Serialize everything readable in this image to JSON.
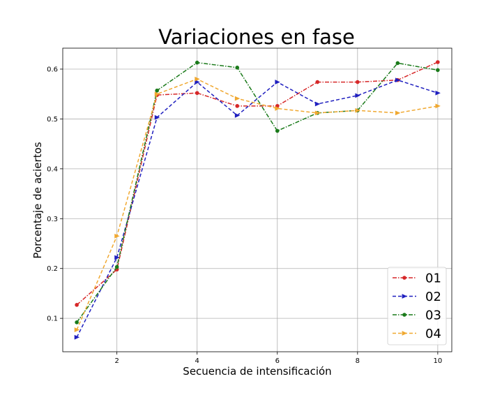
{
  "chart_data": {
    "type": "line",
    "title": "Variaciones en fase",
    "xlabel": "Secuencia de intensificación",
    "ylabel": "Porcentaje de aciertos",
    "xlim": [
      0.65,
      10.35
    ],
    "ylim": [
      0.033,
      0.642
    ],
    "xticks": [
      2,
      4,
      6,
      8,
      10
    ],
    "yticks": [
      0.1,
      0.2,
      0.3,
      0.4,
      0.5,
      0.6
    ],
    "grid": true,
    "legend_position": "lower-right",
    "x": [
      1,
      2,
      3,
      4,
      5,
      6,
      7,
      8,
      9,
      10
    ],
    "series": [
      {
        "name": "01",
        "color": "#d62728",
        "dash": "6,2,1.5,2",
        "marker": "circle",
        "values": [
          0.127,
          0.198,
          0.548,
          0.552,
          0.526,
          0.526,
          0.574,
          0.574,
          0.578,
          0.614
        ]
      },
      {
        "name": "02",
        "color": "#1f1fbf",
        "dash": "5,3",
        "marker": "triangle-right",
        "values": [
          0.062,
          0.222,
          0.503,
          0.574,
          0.507,
          0.574,
          0.53,
          0.547,
          0.578,
          0.552
        ]
      },
      {
        "name": "03",
        "color": "#1a7a1a",
        "dash": "6,2,1.5,2",
        "marker": "circle",
        "values": [
          0.092,
          0.203,
          0.557,
          0.613,
          0.603,
          0.476,
          0.512,
          0.517,
          0.612,
          0.598
        ]
      },
      {
        "name": "04",
        "color": "#f0a830",
        "dash": "5,3",
        "marker": "triangle-right",
        "values": [
          0.077,
          0.265,
          0.55,
          0.58,
          0.541,
          0.521,
          0.512,
          0.517,
          0.512,
          0.526
        ]
      }
    ]
  }
}
